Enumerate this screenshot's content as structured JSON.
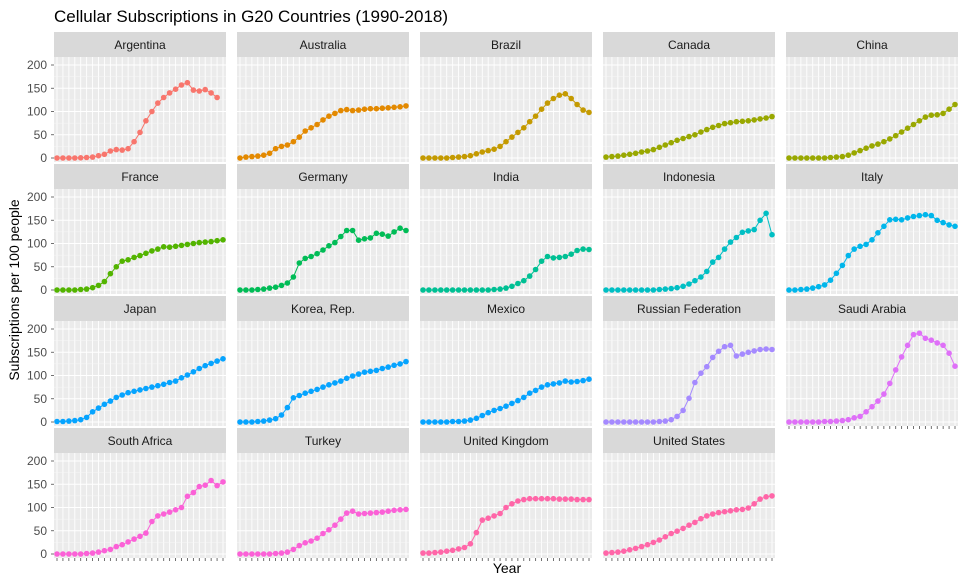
{
  "chart_data": {
    "type": "line",
    "title": "Cellular Subscriptions in G20 Countries (1990-2018)",
    "xlabel": "Year",
    "ylabel": "Subscriptions per 100 people",
    "x_start": 1990,
    "x_end": 2018,
    "ylim": [
      0,
      200
    ],
    "yticks": [
      0,
      50,
      100,
      150,
      200
    ],
    "grid": true,
    "legend": "none",
    "series": [
      {
        "name": "Argentina",
        "color": "#F8766D",
        "values": [
          0,
          0,
          0,
          0,
          0.5,
          1,
          2,
          5,
          8,
          15,
          18,
          17,
          20,
          35,
          55,
          80,
          100,
          118,
          130,
          140,
          148,
          157,
          162,
          146,
          144,
          147,
          140,
          130,
          null
        ]
      },
      {
        "name": "Australia",
        "color": "#E38900",
        "values": [
          0,
          2,
          3,
          4,
          6,
          10,
          20,
          25,
          28,
          35,
          45,
          58,
          65,
          72,
          82,
          90,
          96,
          102,
          104,
          102,
          103,
          105,
          106,
          106,
          107,
          108,
          109,
          110,
          112
        ]
      },
      {
        "name": "Brazil",
        "color": "#C49A00",
        "values": [
          0,
          0,
          0,
          0,
          0,
          1,
          2,
          3,
          5,
          9,
          13,
          16,
          19,
          25,
          35,
          45,
          55,
          65,
          78,
          90,
          105,
          118,
          128,
          135,
          138,
          128,
          115,
          103,
          98
        ]
      },
      {
        "name": "Canada",
        "color": "#99A800",
        "values": [
          2,
          3,
          4,
          6,
          8,
          10,
          13,
          15,
          18,
          23,
          28,
          33,
          38,
          42,
          46,
          50,
          56,
          61,
          66,
          70,
          74,
          76,
          78,
          79,
          80,
          82,
          84,
          86,
          89
        ]
      },
      {
        "name": "China",
        "color": "#99A800",
        "values": [
          0,
          0,
          0,
          0,
          0,
          0,
          0,
          1,
          2,
          3,
          6,
          11,
          16,
          21,
          26,
          30,
          35,
          41,
          48,
          56,
          64,
          72,
          80,
          88,
          92,
          93,
          96,
          105,
          115
        ]
      },
      {
        "name": "France",
        "color": "#53B400",
        "values": [
          0,
          0,
          0,
          0,
          1,
          2,
          5,
          10,
          18,
          35,
          50,
          62,
          65,
          70,
          74,
          79,
          84,
          88,
          93,
          92,
          94,
          96,
          98,
          100,
          102,
          103,
          104,
          106,
          108
        ]
      },
      {
        "name": "Germany",
        "color": "#00BC56",
        "values": [
          0,
          0,
          0,
          1,
          2,
          4,
          6,
          10,
          15,
          28,
          58,
          68,
          72,
          78,
          86,
          95,
          102,
          115,
          128,
          128,
          107,
          110,
          112,
          122,
          120,
          116,
          125,
          133,
          128
        ]
      },
      {
        "name": "India",
        "color": "#00C094",
        "values": [
          0,
          0,
          0,
          0,
          0,
          0,
          0,
          0,
          0,
          0,
          0,
          0,
          1,
          2,
          4,
          8,
          14,
          20,
          30,
          44,
          62,
          72,
          69,
          70,
          72,
          77,
          85,
          88,
          87
        ]
      },
      {
        "name": "Indonesia",
        "color": "#00BFC4",
        "values": [
          0,
          0,
          0,
          0,
          0,
          0,
          0,
          0,
          0,
          1,
          2,
          3,
          5,
          8,
          13,
          20,
          28,
          40,
          60,
          70,
          88,
          103,
          113,
          124,
          127,
          130,
          150,
          165,
          119
        ]
      },
      {
        "name": "Italy",
        "color": "#00B6EB",
        "values": [
          0,
          0,
          1,
          2,
          4,
          7,
          11,
          21,
          36,
          53,
          74,
          88,
          94,
          98,
          108,
          123,
          137,
          151,
          152,
          151,
          155,
          158,
          160,
          162,
          160,
          150,
          145,
          140,
          137
        ]
      },
      {
        "name": "Japan",
        "color": "#06A4FF",
        "values": [
          1,
          1,
          2,
          3,
          5,
          10,
          22,
          30,
          38,
          45,
          53,
          58,
          63,
          66,
          69,
          72,
          75,
          78,
          81,
          85,
          88,
          95,
          101,
          108,
          115,
          121,
          126,
          131,
          136,
          141
        ]
      },
      {
        "name": "Korea, Rep.",
        "color": "#06A4FF",
        "values": [
          0,
          0,
          0,
          1,
          2,
          4,
          7,
          15,
          31,
          52,
          57,
          62,
          66,
          70,
          75,
          80,
          84,
          88,
          94,
          99,
          103,
          107,
          109,
          111,
          115,
          118,
          122,
          125,
          130
        ]
      },
      {
        "name": "Mexico",
        "color": "#06A4FF",
        "values": [
          0,
          0,
          0,
          0,
          0,
          1,
          1,
          2,
          4,
          8,
          14,
          20,
          25,
          29,
          34,
          40,
          46,
          53,
          62,
          68,
          75,
          80,
          82,
          84,
          88,
          86,
          87,
          89,
          92,
          95
        ]
      },
      {
        "name": "Russian Federation",
        "color": "#A58AFF",
        "values": [
          0,
          0,
          0,
          0,
          0,
          0,
          0,
          0,
          0,
          1,
          2,
          5,
          12,
          25,
          51,
          85,
          105,
          119,
          139,
          152,
          162,
          165,
          142,
          146,
          150,
          153,
          156,
          157,
          156,
          157
        ]
      },
      {
        "name": "Saudi Arabia",
        "color": "#DF70F8",
        "values": [
          0,
          0,
          0,
          0,
          0,
          0,
          1,
          1,
          2,
          3,
          5,
          9,
          12,
          22,
          33,
          45,
          60,
          83,
          112,
          140,
          165,
          188,
          191,
          180,
          176,
          170,
          165,
          148,
          120,
          121
        ]
      },
      {
        "name": "South Africa",
        "color": "#FB61D7",
        "values": [
          0,
          0,
          0,
          0,
          0,
          1,
          2,
          4,
          7,
          10,
          16,
          20,
          26,
          32,
          38,
          45,
          70,
          82,
          86,
          90,
          95,
          100,
          124,
          132,
          145,
          148,
          158,
          147,
          155,
          162
        ]
      },
      {
        "name": "Turkey",
        "color": "#FB61D7",
        "values": [
          0,
          0,
          0,
          0,
          0,
          0,
          1,
          2,
          4,
          10,
          18,
          24,
          28,
          34,
          44,
          52,
          62,
          75,
          88,
          92,
          86,
          87,
          88,
          89,
          90,
          92,
          94,
          95,
          96,
          97
        ]
      },
      {
        "name": "United Kingdom",
        "color": "#FF66A8",
        "values": [
          2,
          2,
          3,
          4,
          6,
          8,
          11,
          14,
          22,
          46,
          73,
          77,
          82,
          87,
          100,
          108,
          114,
          117,
          119,
          119,
          119,
          119,
          119,
          118,
          118,
          118,
          117,
          117,
          117,
          117
        ]
      },
      {
        "name": "United States",
        "color": "#FF66A8",
        "values": [
          2,
          3,
          4,
          6,
          9,
          12,
          16,
          20,
          25,
          30,
          37,
          44,
          49,
          55,
          62,
          68,
          76,
          82,
          86,
          89,
          91,
          93,
          95,
          96,
          99,
          108,
          118,
          123,
          125,
          129
        ]
      }
    ]
  }
}
